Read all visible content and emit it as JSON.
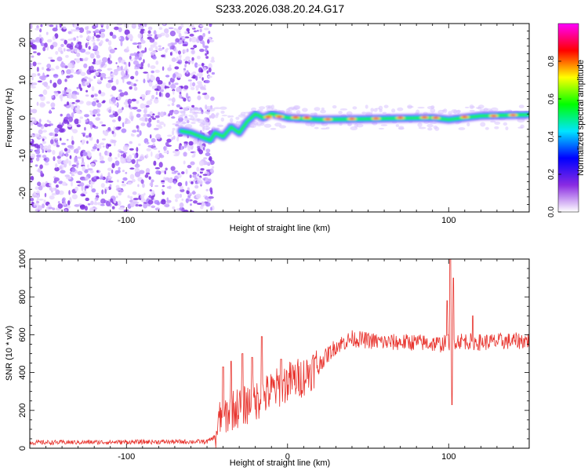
{
  "title": "S233.2026.038.20.24.G17",
  "chart_data": [
    {
      "type": "heatmap",
      "name": "spectrogram",
      "xlabel": "Height of straight line (km)",
      "ylabel": "Frequency (Hz)",
      "xlim": [
        -160,
        150
      ],
      "ylim": [
        -25,
        25
      ],
      "xticks": [
        -100,
        100
      ],
      "yticks": [
        20,
        10,
        0,
        -10,
        -20
      ],
      "colorbar": {
        "label": "Normalized spectral amplitude",
        "range": [
          0,
          1
        ],
        "ticks": [
          "0.0",
          "0.2",
          "0.4",
          "0.6",
          "0.8"
        ],
        "colormap": [
          "#ffffff",
          "#8a2be2",
          "#0000ff",
          "#00e5ff",
          "#00ff00",
          "#ffff00",
          "#ff0000",
          "#ff00ff"
        ]
      },
      "signal_track": [
        {
          "x": -66,
          "y": -3.5
        },
        {
          "x": -60,
          "y": -4
        },
        {
          "x": -54,
          "y": -5
        },
        {
          "x": -48,
          "y": -6
        },
        {
          "x": -45,
          "y": -4
        },
        {
          "x": -40,
          "y": -5
        },
        {
          "x": -35,
          "y": -2.5
        },
        {
          "x": -30,
          "y": -4
        },
        {
          "x": -25,
          "y": -1
        },
        {
          "x": -20,
          "y": 1
        },
        {
          "x": -15,
          "y": 0
        },
        {
          "x": -10,
          "y": 1
        },
        {
          "x": 0,
          "y": 0
        },
        {
          "x": 20,
          "y": -0.5
        },
        {
          "x": 50,
          "y": -0.3
        },
        {
          "x": 90,
          "y": 0
        },
        {
          "x": 100,
          "y": -0.5
        },
        {
          "x": 120,
          "y": 0.5
        },
        {
          "x": 150,
          "y": 0.8
        }
      ],
      "noise_region_x": [
        -160,
        -50
      ]
    },
    {
      "type": "line",
      "name": "snr",
      "xlabel": "Height of straight line (km)",
      "ylabel": "SNR (10 * v/v)",
      "xlim": [
        -160,
        150
      ],
      "ylim": [
        0,
        1000
      ],
      "xticks": [
        -100,
        0,
        100
      ],
      "yticks": [
        0,
        200,
        400,
        600,
        800,
        1000
      ],
      "line_color": "#e8332d",
      "series_envelope": [
        {
          "x": -160,
          "y": 30
        },
        {
          "x": -50,
          "y": 35
        },
        {
          "x": -45,
          "y": 60
        },
        {
          "x": -42,
          "y": 150
        },
        {
          "x": -35,
          "y": 200
        },
        {
          "x": -20,
          "y": 250
        },
        {
          "x": -10,
          "y": 300
        },
        {
          "x": 0,
          "y": 350
        },
        {
          "x": 10,
          "y": 380
        },
        {
          "x": 20,
          "y": 450
        },
        {
          "x": 30,
          "y": 540
        },
        {
          "x": 40,
          "y": 580
        },
        {
          "x": 50,
          "y": 570
        },
        {
          "x": 60,
          "y": 560
        },
        {
          "x": 80,
          "y": 560
        },
        {
          "x": 95,
          "y": 550
        },
        {
          "x": 105,
          "y": 570
        },
        {
          "x": 120,
          "y": 560
        },
        {
          "x": 150,
          "y": 570
        }
      ],
      "spikes": [
        {
          "x": -40,
          "y": 430
        },
        {
          "x": -35,
          "y": 460
        },
        {
          "x": -28,
          "y": 500
        },
        {
          "x": -22,
          "y": 480
        },
        {
          "x": -16,
          "y": 590
        },
        {
          "x": -4,
          "y": 470
        },
        {
          "x": 99,
          "y": 780
        },
        {
          "x": 101,
          "y": 1000
        },
        {
          "x": 103,
          "y": 900
        },
        {
          "x": 102,
          "y": 230
        },
        {
          "x": 115,
          "y": 700
        }
      ]
    }
  ]
}
